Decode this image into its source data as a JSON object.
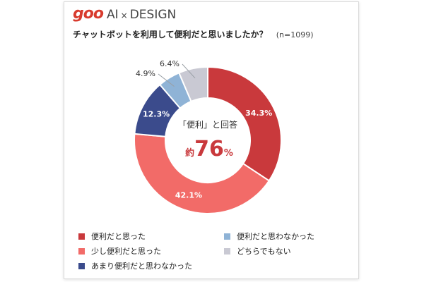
{
  "logo": {
    "brand": "goo",
    "ai": "AI",
    "cross": "×",
    "design": "DESIGN"
  },
  "question": {
    "text": "チャットボットを利用して便利だと思いましたか？",
    "n": "(n=1099)"
  },
  "center": {
    "caption": "「便利」と回答",
    "prefix": "約",
    "value": "76",
    "unit": "%"
  },
  "chart_data": {
    "type": "pie",
    "donut": true,
    "categories": [
      "便利だと思った",
      "少し便利だと思った",
      "あまり便利だと思わなかった",
      "便利だと思わなかった",
      "どちらでもない"
    ],
    "values": [
      34.3,
      42.1,
      12.3,
      4.9,
      6.4
    ],
    "value_labels": [
      "34.3%",
      "42.1%",
      "12.3%",
      "4.9%",
      "6.4%"
    ],
    "colors": [
      "#c9393c",
      "#f26b68",
      "#3b4b8c",
      "#8fb3d6",
      "#c9c9d3"
    ],
    "start_angle_deg": 0,
    "direction": "clockwise",
    "legend_position": "bottom"
  }
}
